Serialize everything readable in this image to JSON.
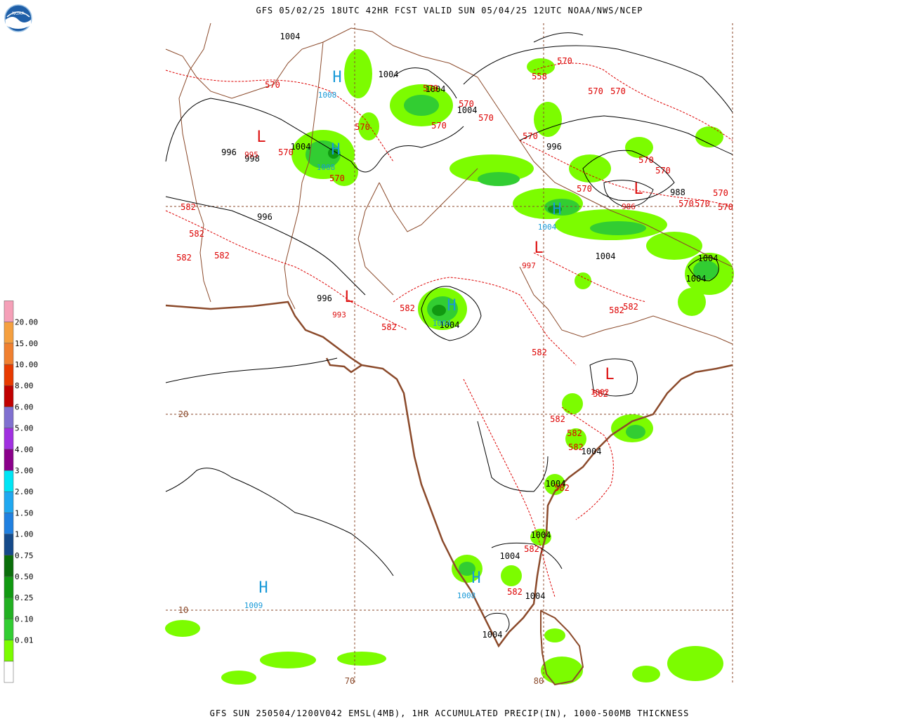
{
  "header": {
    "title": "GFS 05/02/25 18UTC 42HR FCST VALID SUN 05/04/25 12UTC NOAA/NWS/NCEP"
  },
  "footer": {
    "caption": "GFS SUN 250504/1200V042 EMSL(4MB), 1HR ACCUMULATED PRECIP(IN), 1000-500MB THICKNESS"
  },
  "logo": {
    "text": "NOAA",
    "icon": "noaa-logo-icon"
  },
  "legend": {
    "levels": [
      {
        "label": "",
        "color": "#ffffff"
      },
      {
        "label": "0.01",
        "color": "#7cfc00"
      },
      {
        "label": "0.10",
        "color": "#32cd32"
      },
      {
        "label": "0.25",
        "color": "#22b022"
      },
      {
        "label": "0.50",
        "color": "#119911"
      },
      {
        "label": "0.75",
        "color": "#0a6e0a"
      },
      {
        "label": "1.00",
        "color": "#154a8a"
      },
      {
        "label": "1.50",
        "color": "#2080e0"
      },
      {
        "label": "2.00",
        "color": "#20a8f0"
      },
      {
        "label": "3.00",
        "color": "#00e5f5"
      },
      {
        "label": "4.00",
        "color": "#8a008a"
      },
      {
        "label": "5.00",
        "color": "#a030e0"
      },
      {
        "label": "6.00",
        "color": "#8070d0"
      },
      {
        "label": "8.00",
        "color": "#c00000"
      },
      {
        "label": "10.00",
        "color": "#e83a00"
      },
      {
        "label": "15.00",
        "color": "#f08030"
      },
      {
        "label": "20.00",
        "color": "#f5a040"
      },
      {
        "label": "",
        "color": "#f5a0b8"
      }
    ]
  },
  "grid": {
    "lat_labels": [
      {
        "text": "20",
        "lat": 20
      },
      {
        "text": "10",
        "lat": 10
      }
    ],
    "lon_labels": [
      {
        "text": "70",
        "lon": 70
      },
      {
        "text": "80",
        "lon": 80
      }
    ]
  },
  "pressure_labels": [
    "1004",
    "1004",
    "1004",
    "1004",
    "1004",
    "996",
    "998",
    "996",
    "996",
    "996",
    "988",
    "1004",
    "1004",
    "1004",
    "1004",
    "1004",
    "1004",
    "1004",
    "1004",
    "1004",
    "1004"
  ],
  "thickness_labels": [
    "570",
    "570",
    "570",
    "570",
    "570",
    "570",
    "570",
    "570",
    "558",
    "570",
    "570",
    "570",
    "570",
    "570",
    "570",
    "570",
    "570",
    "570",
    "570",
    "570",
    "582",
    "582",
    "582",
    "582",
    "582",
    "582",
    "582",
    "582",
    "582",
    "582",
    "582",
    "582",
    "582",
    "582",
    "582",
    "582"
  ],
  "centers": [
    {
      "letter": "H",
      "value": "1008",
      "kind": "high"
    },
    {
      "letter": "H",
      "value": "1008",
      "kind": "high"
    },
    {
      "letter": "L",
      "value": "995",
      "kind": "low"
    },
    {
      "letter": "L",
      "value": "993",
      "kind": "low"
    },
    {
      "letter": "H",
      "value": "1004",
      "kind": "high"
    },
    {
      "letter": "H",
      "value": "1004",
      "kind": "high"
    },
    {
      "letter": "L",
      "value": "997",
      "kind": "low"
    },
    {
      "letter": "L",
      "value": "986",
      "kind": "low"
    },
    {
      "letter": "L",
      "value": "1002",
      "kind": "low"
    },
    {
      "letter": "H",
      "value": "1008",
      "kind": "high"
    },
    {
      "letter": "H",
      "value": "1009",
      "kind": "high"
    }
  ],
  "colors": {
    "coast": "#8b4a2b",
    "isobar": "#000000",
    "thickness": "#dd0000",
    "high": "#1a9ad8",
    "low": "#dd1111",
    "grid": "#8b4a2b"
  }
}
